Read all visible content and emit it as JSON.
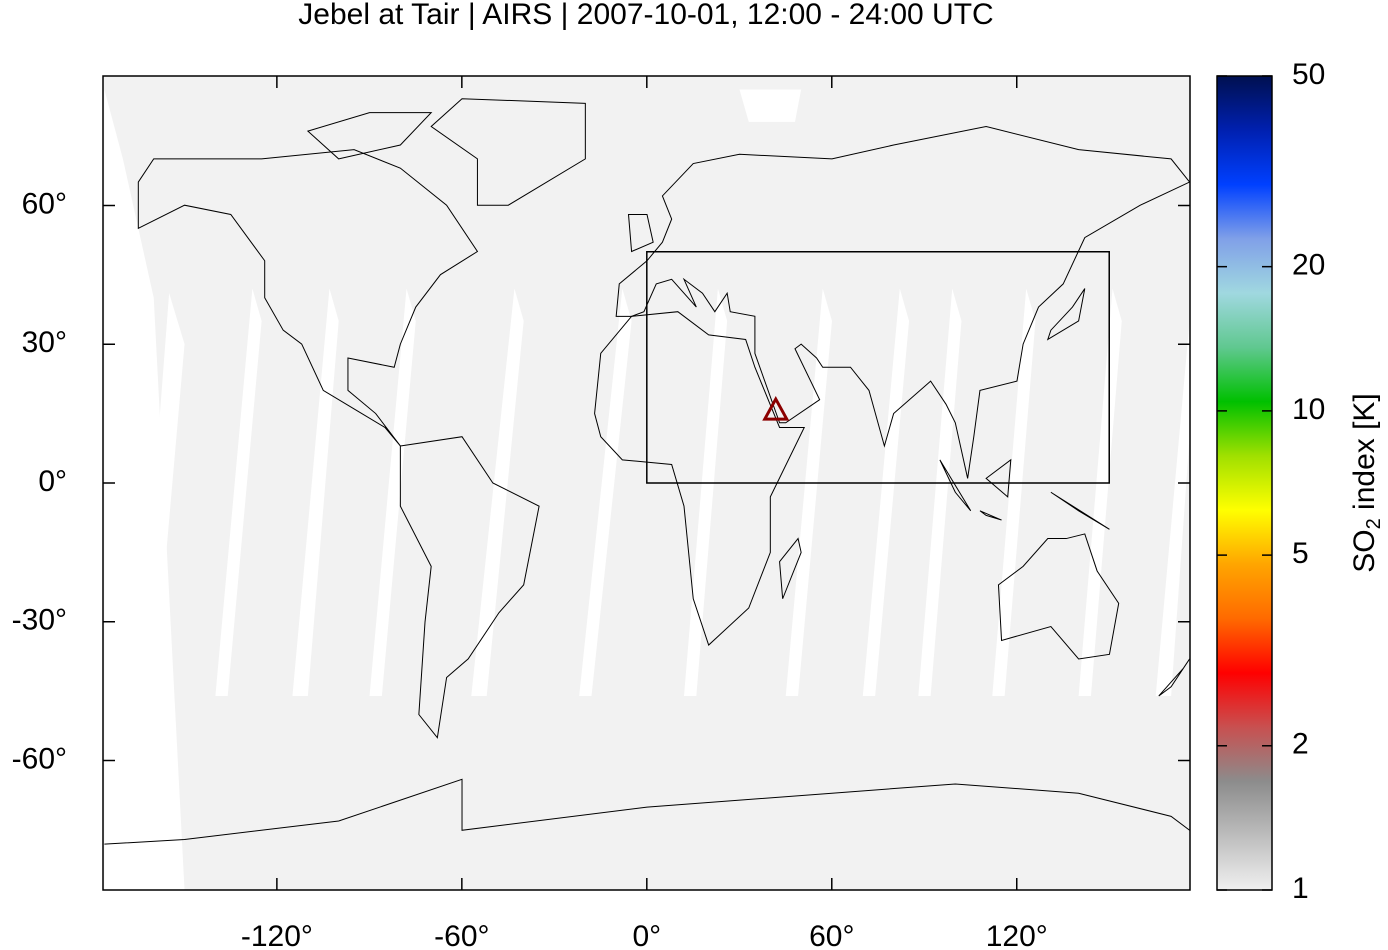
{
  "chart_data": {
    "type": "map",
    "title": "Jebel at Tair | AIRS | 2007-10-01, 12:00 - 24:00 UTC",
    "xlim": [
      -176.4,
      176.2
    ],
    "ylim": [
      -88,
      88
    ],
    "xticks": [
      {
        "value": -120,
        "label": "-120°"
      },
      {
        "value": -60,
        "label": "-60°"
      },
      {
        "value": 0,
        "label": "0°"
      },
      {
        "value": 60,
        "label": "60°"
      },
      {
        "value": 120,
        "label": "120°"
      }
    ],
    "yticks": [
      {
        "value": 60,
        "label": "60°"
      },
      {
        "value": 30,
        "label": "30°"
      },
      {
        "value": 0,
        "label": "0°"
      },
      {
        "value": -30,
        "label": "-30°"
      },
      {
        "value": -60,
        "label": "-60°"
      }
    ],
    "region": {
      "lon": [
        0,
        150
      ],
      "lat": [
        0,
        50
      ],
      "color": "#000000"
    },
    "volcano": {
      "lon": 41.83,
      "lat": 15.55,
      "color": "#8b0000"
    },
    "colorbar": {
      "label": {
        "main": "SO",
        "sub": "2",
        "rest": " index [K]"
      },
      "lim": [
        1,
        50
      ],
      "log": true,
      "ticks": [
        1,
        2,
        5,
        10,
        20,
        50
      ],
      "colors": [
        "#f0f0f0",
        "#bdbdbd",
        "#8c8c8c",
        "#c85050",
        "#ff0000",
        "#ff6a00",
        "#ffa500",
        "#ffff00",
        "#a0e000",
        "#00c000",
        "#60c890",
        "#a0d8e0",
        "#80a0e8",
        "#0040ff",
        "#0020b0",
        "#001050"
      ]
    }
  }
}
